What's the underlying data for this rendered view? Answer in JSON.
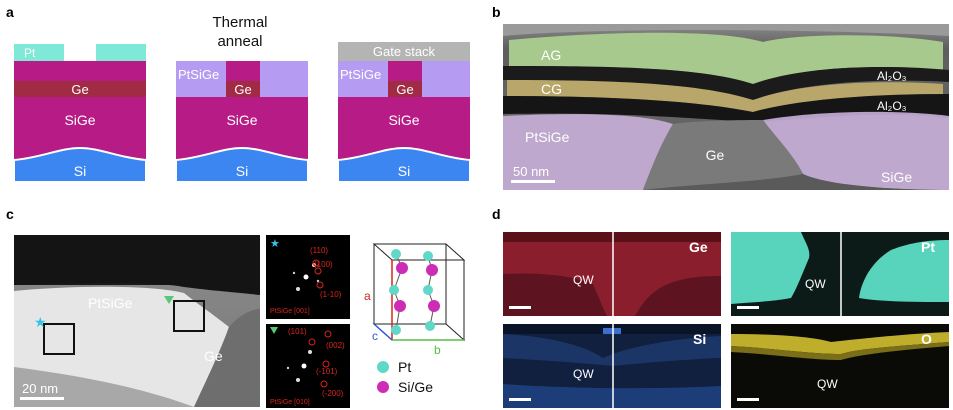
{
  "figure": {
    "panel_labels": {
      "a": "a",
      "b": "b",
      "c": "c",
      "d": "d"
    },
    "colors": {
      "pt": "#7fe8d6",
      "ptsige": "#b59cf2",
      "sige": "#b71b86",
      "ge": "#a12a45",
      "si": "#3b86f0",
      "gate": "#b4b4b4",
      "fft_red": "#d8251c",
      "atom_pt": "#5fd8c8",
      "atom_sige": "#cc2db4"
    },
    "panel_a": {
      "anneal_title_line1": "Thermal",
      "anneal_title_line2": "anneal",
      "diagram1": {
        "pt": "Pt",
        "ge": "Ge",
        "sige": "SiGe",
        "si": "Si"
      },
      "diagram2": {
        "ptsige": "PtSiGe",
        "ge": "Ge",
        "sige": "SiGe",
        "si": "Si"
      },
      "diagram3": {
        "gate": "Gate stack",
        "ptsige": "PtSiGe",
        "ge": "Ge",
        "sige": "SiGe",
        "si": "Si"
      }
    },
    "panel_b": {
      "ag": "AG",
      "cg": "CG",
      "al2o3_top": "Al₂O₃",
      "al2o3_bottom": "Al₂O₃",
      "ptsige": "PtSiGe",
      "ge": "Ge",
      "sige": "SiGe",
      "scale": "50 nm"
    },
    "panel_c": {
      "ptsige": "PtSiGe",
      "ge": "Ge",
      "scale": "20 nm",
      "fft1": {
        "spots": [
          "(110)",
          "(100)",
          "(1-10)"
        ],
        "caption": "PtSiGe [001]"
      },
      "fft2": {
        "spots": [
          "(101)",
          "(002)",
          "(-101)",
          "(-200)"
        ],
        "caption": "PtSiGe [010]"
      },
      "axes": {
        "a": "a",
        "b": "b",
        "c": "c"
      },
      "legend": {
        "pt": "Pt",
        "sige": "Si/Ge"
      }
    },
    "panel_d": {
      "maps": [
        {
          "element": "Ge",
          "qw": "QW"
        },
        {
          "element": "Pt",
          "qw": "QW"
        },
        {
          "element": "Si",
          "qw": "QW"
        },
        {
          "element": "O",
          "qw": "QW"
        }
      ]
    }
  }
}
